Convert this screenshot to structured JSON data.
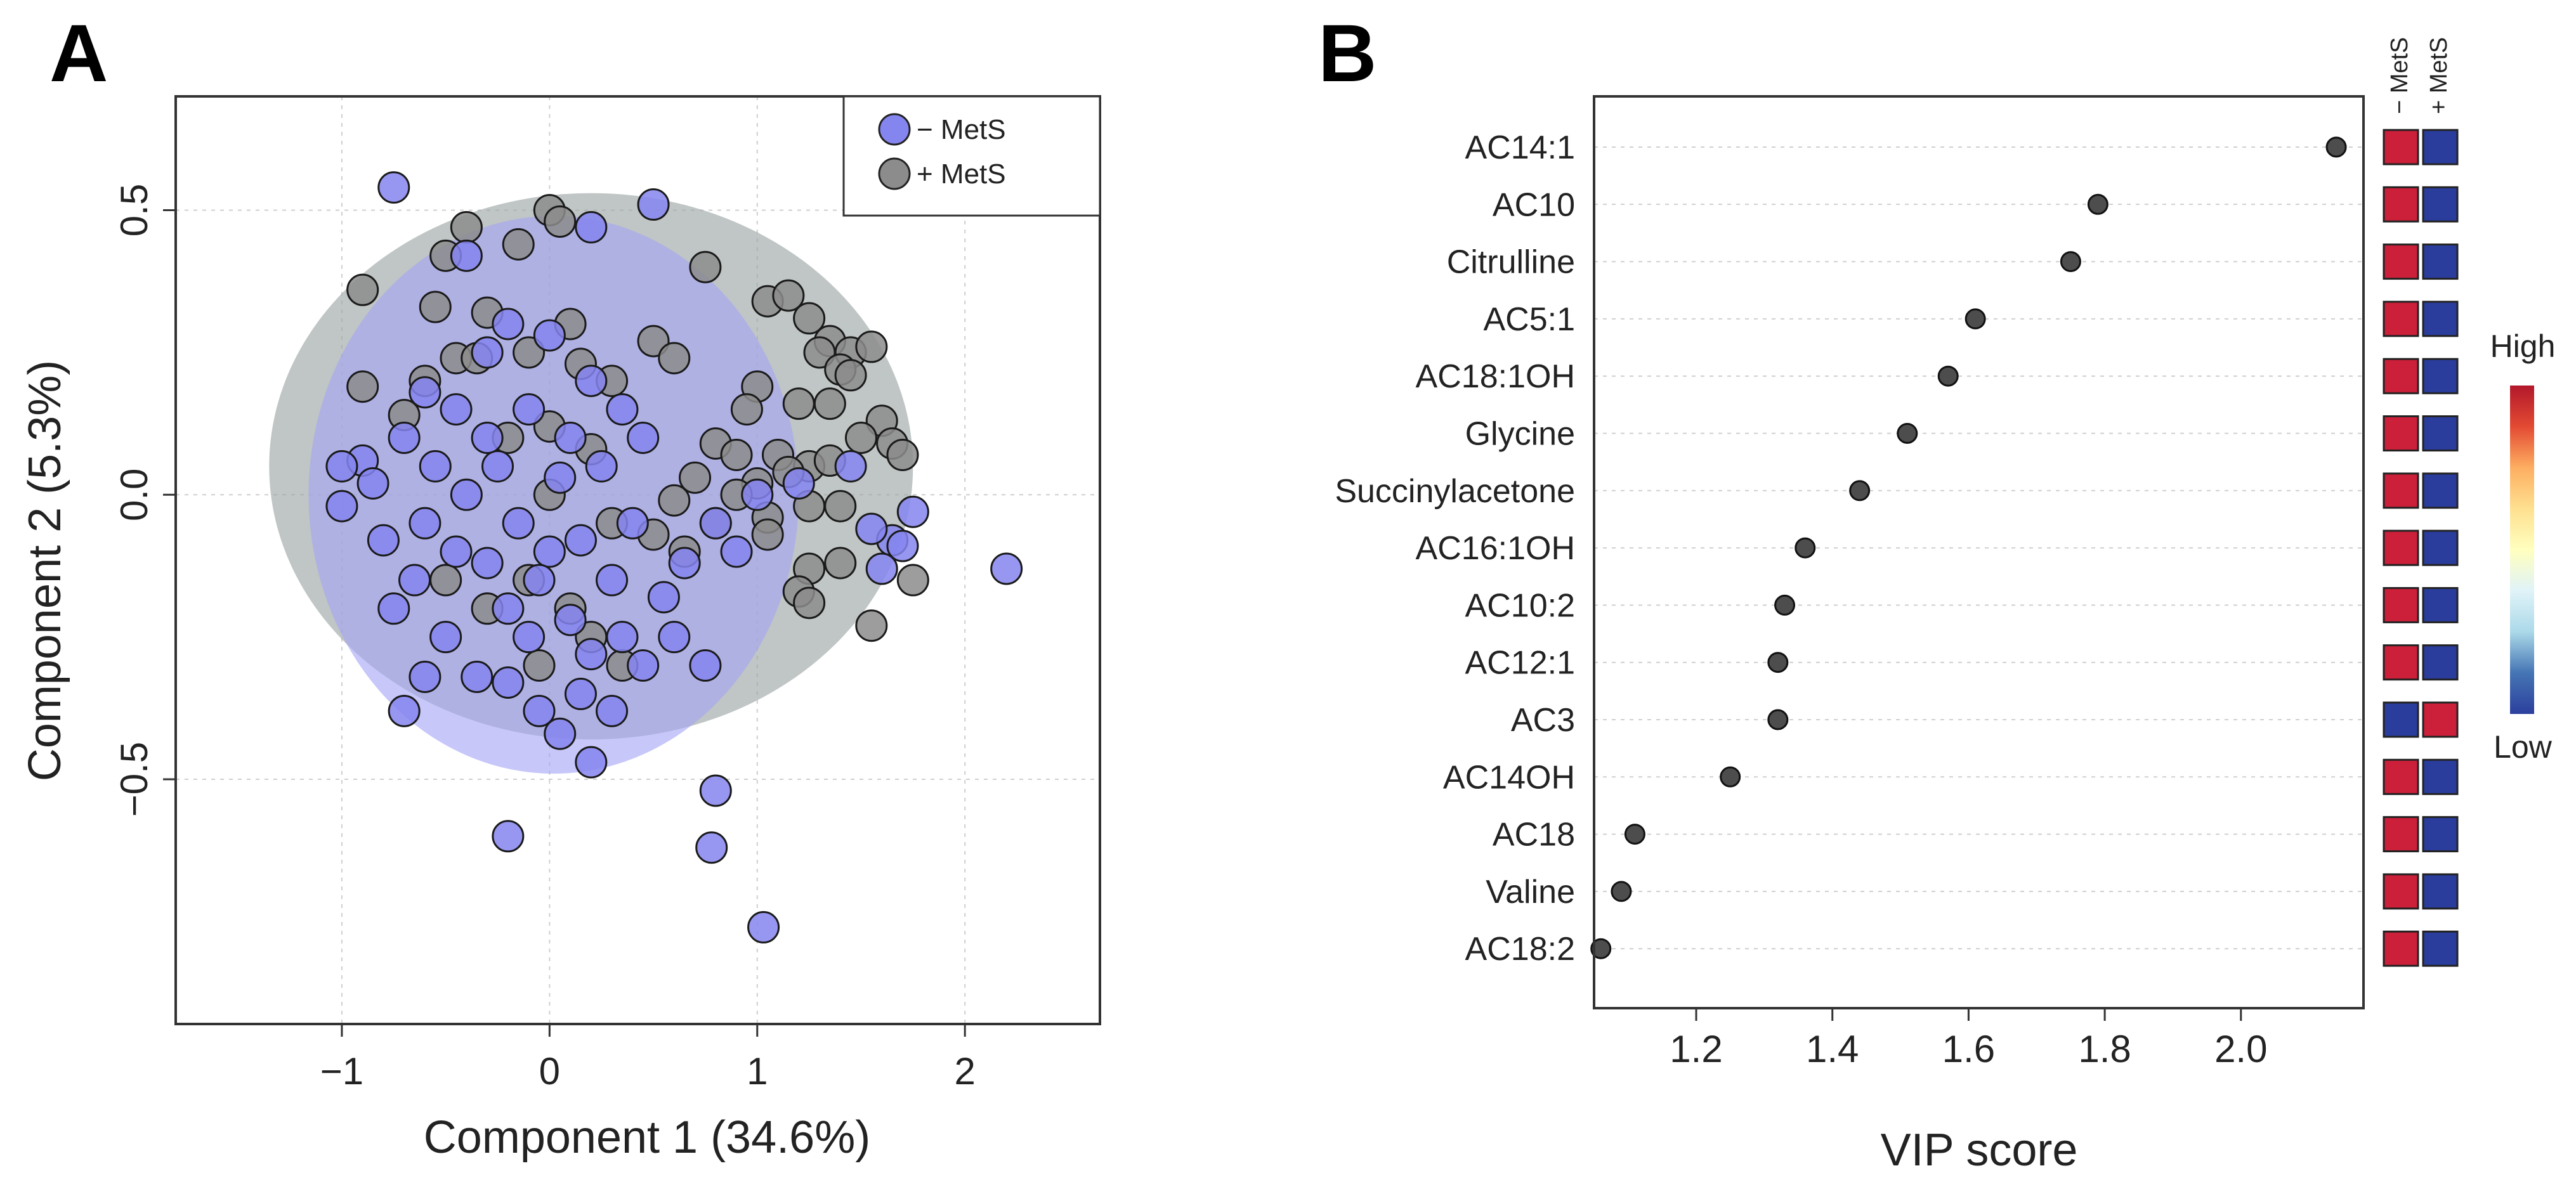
{
  "chart_data": [
    {
      "panel": "A",
      "type": "scatter",
      "title": "",
      "xlabel": "Component 1 (34.6%)",
      "ylabel": "Component 2 (5.3%)",
      "xlim": [
        -1.8,
        2.65
      ],
      "ylim": [
        -0.93,
        0.7
      ],
      "x_ticks": [
        -1,
        0,
        1,
        2
      ],
      "x_tick_labels": [
        "−1",
        "0",
        "1",
        "2"
      ],
      "y_ticks": [
        0.5,
        0.0,
        -0.5
      ],
      "y_tick_labels": [
        "0.5",
        "0.0",
        "−0.5"
      ],
      "grid": true,
      "legend_position": "top-right",
      "ellipses": [
        {
          "group": "+ MetS",
          "center": [
            0.2,
            0.05
          ],
          "radii": [
            1.55,
            0.48
          ],
          "color": "#9aa1a1"
        },
        {
          "group": "− MetS",
          "center": [
            0.02,
            0.0
          ],
          "radii": [
            1.18,
            0.49
          ],
          "color": "#a5a5f5"
        }
      ],
      "series": [
        {
          "name": "− MetS",
          "color": "#8585f0",
          "points": [
            [
              -0.75,
              0.54
            ],
            [
              0.5,
              0.51
            ],
            [
              0.2,
              0.47
            ],
            [
              -0.4,
              0.42
            ],
            [
              -0.2,
              0.3
            ],
            [
              0.0,
              0.28
            ],
            [
              -0.3,
              0.25
            ],
            [
              -0.6,
              0.18
            ],
            [
              -0.45,
              0.15
            ],
            [
              -0.7,
              0.1
            ],
            [
              -0.9,
              0.06
            ],
            [
              -1.0,
              0.05
            ],
            [
              -0.85,
              0.02
            ],
            [
              -1.0,
              -0.02
            ],
            [
              -0.8,
              -0.08
            ],
            [
              -0.6,
              -0.05
            ],
            [
              -0.45,
              -0.1
            ],
            [
              -0.3,
              -0.12
            ],
            [
              -0.2,
              -0.2
            ],
            [
              -0.1,
              -0.25
            ],
            [
              0.1,
              -0.22
            ],
            [
              0.2,
              -0.28
            ],
            [
              0.3,
              -0.15
            ],
            [
              -0.5,
              -0.25
            ],
            [
              -0.6,
              -0.32
            ],
            [
              -0.35,
              -0.32
            ],
            [
              -0.2,
              -0.33
            ],
            [
              -0.05,
              -0.38
            ],
            [
              0.15,
              -0.35
            ],
            [
              0.3,
              -0.38
            ],
            [
              -0.7,
              -0.38
            ],
            [
              0.05,
              -0.42
            ],
            [
              0.2,
              -0.47
            ],
            [
              0.8,
              -0.52
            ],
            [
              -0.2,
              -0.6
            ],
            [
              0.78,
              -0.62
            ],
            [
              1.03,
              -0.76
            ],
            [
              2.2,
              -0.13
            ],
            [
              1.75,
              -0.03
            ],
            [
              1.65,
              -0.08
            ],
            [
              1.55,
              -0.06
            ],
            [
              1.6,
              -0.13
            ],
            [
              1.7,
              -0.09
            ],
            [
              1.45,
              0.05
            ],
            [
              1.2,
              0.02
            ],
            [
              1.0,
              0.0
            ],
            [
              0.8,
              -0.05
            ],
            [
              0.9,
              -0.1
            ],
            [
              0.65,
              -0.12
            ],
            [
              0.55,
              -0.18
            ],
            [
              0.4,
              -0.05
            ],
            [
              0.45,
              0.1
            ],
            [
              0.35,
              0.15
            ],
            [
              0.2,
              0.2
            ],
            [
              0.25,
              0.05
            ],
            [
              0.1,
              0.1
            ],
            [
              -0.1,
              0.15
            ],
            [
              -0.25,
              0.05
            ],
            [
              -0.15,
              -0.05
            ],
            [
              0.0,
              -0.1
            ],
            [
              0.15,
              -0.08
            ],
            [
              -0.4,
              0.0
            ],
            [
              -0.55,
              0.05
            ],
            [
              -0.65,
              -0.15
            ],
            [
              -0.75,
              -0.2
            ],
            [
              0.6,
              -0.25
            ],
            [
              0.75,
              -0.3
            ],
            [
              0.45,
              -0.3
            ],
            [
              0.35,
              -0.25
            ],
            [
              -0.3,
              0.1
            ],
            [
              0.05,
              0.03
            ],
            [
              -0.05,
              -0.15
            ]
          ]
        },
        {
          "name": "+ MetS",
          "color": "#8c8c8c",
          "points": [
            [
              0.0,
              0.5
            ],
            [
              -0.4,
              0.47
            ],
            [
              -0.15,
              0.44
            ],
            [
              0.05,
              0.48
            ],
            [
              -0.5,
              0.42
            ],
            [
              0.75,
              0.4
            ],
            [
              -0.9,
              0.36
            ],
            [
              -0.55,
              0.33
            ],
            [
              -0.3,
              0.32
            ],
            [
              0.1,
              0.3
            ],
            [
              0.5,
              0.27
            ],
            [
              0.6,
              0.24
            ],
            [
              1.05,
              0.34
            ],
            [
              1.15,
              0.35
            ],
            [
              1.25,
              0.31
            ],
            [
              1.35,
              0.27
            ],
            [
              1.45,
              0.25
            ],
            [
              1.55,
              0.26
            ],
            [
              1.3,
              0.25
            ],
            [
              1.4,
              0.22
            ],
            [
              1.45,
              0.21
            ],
            [
              1.0,
              0.19
            ],
            [
              1.2,
              0.16
            ],
            [
              0.95,
              0.15
            ],
            [
              1.35,
              0.16
            ],
            [
              1.6,
              0.13
            ],
            [
              1.65,
              0.09
            ],
            [
              1.5,
              0.1
            ],
            [
              1.7,
              0.07
            ],
            [
              0.8,
              0.09
            ],
            [
              0.9,
              0.07
            ],
            [
              1.1,
              0.07
            ],
            [
              1.25,
              0.05
            ],
            [
              1.35,
              0.06
            ],
            [
              1.15,
              0.04
            ],
            [
              1.0,
              0.02
            ],
            [
              0.9,
              0.0
            ],
            [
              0.7,
              0.03
            ],
            [
              0.6,
              -0.01
            ],
            [
              0.8,
              -0.05
            ],
            [
              1.05,
              -0.04
            ],
            [
              1.25,
              -0.02
            ],
            [
              1.4,
              -0.02
            ],
            [
              1.05,
              -0.07
            ],
            [
              0.65,
              -0.1
            ],
            [
              0.5,
              -0.07
            ],
            [
              1.25,
              -0.13
            ],
            [
              1.2,
              -0.17
            ],
            [
              1.25,
              -0.19
            ],
            [
              1.55,
              -0.23
            ],
            [
              1.75,
              -0.15
            ],
            [
              1.4,
              -0.12
            ],
            [
              -0.9,
              0.19
            ],
            [
              -0.7,
              0.14
            ],
            [
              -0.6,
              0.2
            ],
            [
              -0.45,
              0.24
            ],
            [
              -0.35,
              0.24
            ],
            [
              -0.1,
              0.25
            ],
            [
              0.15,
              0.23
            ],
            [
              0.3,
              0.2
            ],
            [
              -0.2,
              0.1
            ],
            [
              0.0,
              0.12
            ],
            [
              0.2,
              0.08
            ],
            [
              0.3,
              -0.05
            ],
            [
              0.1,
              -0.2
            ],
            [
              -0.1,
              -0.15
            ],
            [
              -0.3,
              -0.2
            ],
            [
              -0.5,
              -0.15
            ],
            [
              0.35,
              -0.3
            ],
            [
              -0.05,
              -0.3
            ],
            [
              0.2,
              -0.25
            ],
            [
              0.0,
              0.0
            ]
          ]
        }
      ]
    },
    {
      "panel": "B",
      "type": "scatter",
      "title": "",
      "xlabel": "VIP score",
      "ylabel": "",
      "xlim": [
        1.05,
        2.18
      ],
      "x_ticks": [
        1.2,
        1.4,
        1.6,
        1.8,
        2.0
      ],
      "x_tick_labels": [
        "1.2",
        "1.4",
        "1.6",
        "1.8",
        "2.0"
      ],
      "grid": true,
      "categories": [
        "AC14:1",
        "AC10",
        "Citrulline",
        "AC5:1",
        "AC18:1OH",
        "Glycine",
        "Succinylacetone",
        "AC16:1OH",
        "AC10:2",
        "AC12:1",
        "AC3",
        "AC14OH",
        "AC18",
        "Valine",
        "AC18:2"
      ],
      "values": [
        2.14,
        1.79,
        1.75,
        1.61,
        1.57,
        1.51,
        1.44,
        1.36,
        1.33,
        1.32,
        1.32,
        1.25,
        1.11,
        1.09,
        1.06
      ],
      "heatmap": {
        "columns": [
          "− MetS",
          "+ MetS"
        ],
        "relative_level": [
          [
            "high",
            "low"
          ],
          [
            "high",
            "low"
          ],
          [
            "high",
            "low"
          ],
          [
            "high",
            "low"
          ],
          [
            "high",
            "low"
          ],
          [
            "high",
            "low"
          ],
          [
            "high",
            "low"
          ],
          [
            "high",
            "low"
          ],
          [
            "high",
            "low"
          ],
          [
            "high",
            "low"
          ],
          [
            "low",
            "high"
          ],
          [
            "high",
            "low"
          ],
          [
            "high",
            "low"
          ],
          [
            "high",
            "low"
          ],
          [
            "high",
            "low"
          ]
        ],
        "high_color": "#cc1f3a",
        "low_color": "#2a3d9c"
      },
      "colorscale": {
        "high_label": "High",
        "low_label": "Low",
        "colors": [
          "#b2182b",
          "#e34a33",
          "#fdae61",
          "#fee090",
          "#ffffbf",
          "#e0f3f8",
          "#abd9e9",
          "#4575b4",
          "#2c3f9d"
        ]
      }
    }
  ],
  "panels": {
    "a_letter": "A",
    "b_letter": "B"
  }
}
